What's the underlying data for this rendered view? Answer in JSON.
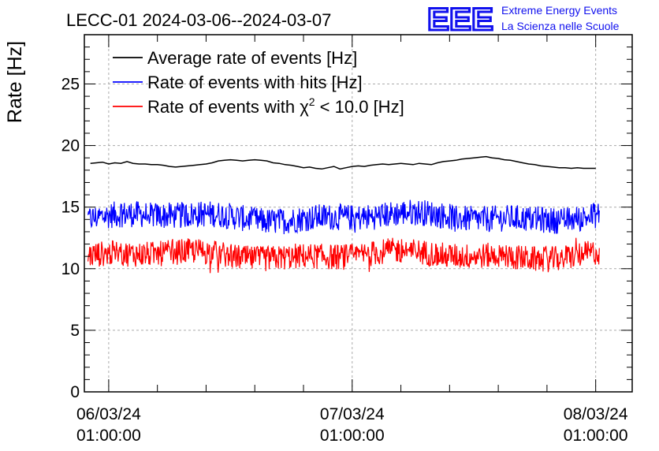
{
  "chart_data": {
    "type": "line",
    "title": "LECC-01 2024-03-06--2024-03-07",
    "ylabel": "Rate [Hz]",
    "xlabel": "",
    "ylim": [
      0,
      29
    ],
    "yticks": [
      0,
      5,
      10,
      15,
      20,
      25
    ],
    "x_range_hours": [
      -2,
      43
    ],
    "x_ticks": [
      {
        "date": "06/03/24",
        "time": "01:00:00",
        "hour": 0
      },
      {
        "date": "07/03/24",
        "time": "01:00:00",
        "hour": 20
      },
      {
        "date": "08/03/24",
        "time": "01:00:00",
        "hour": 40
      }
    ],
    "grid": true,
    "legend_position": "top-left",
    "series": [
      {
        "name": "Average rate of events [Hz]",
        "color": "#000000",
        "style": "smooth",
        "x_hours": [
          -1.5,
          -1,
          -0.5,
          0,
          0.5,
          1,
          1.5,
          2,
          2.5,
          3,
          3.5,
          4,
          4.5,
          5,
          5.5,
          6,
          6.5,
          7,
          7.5,
          8,
          8.5,
          9,
          9.5,
          10,
          10.5,
          11,
          11.5,
          12,
          12.5,
          13,
          13.5,
          14,
          14.5,
          15,
          15.5,
          16,
          16.5,
          17,
          17.5,
          18,
          18.5,
          19,
          19.5,
          20,
          20.5,
          21,
          21.5,
          22,
          22.5,
          23,
          23.5,
          24,
          24.5,
          25,
          25.5,
          26,
          26.5,
          27,
          27.5,
          28,
          28.5,
          29,
          29.5,
          30,
          30.5,
          31,
          31.5,
          32,
          32.5,
          33,
          33.5,
          34,
          34.5,
          35,
          35.5,
          36,
          36.5,
          37,
          37.5,
          38,
          38.5,
          39,
          39.5,
          40
        ],
        "values": [
          18.55,
          18.6,
          18.65,
          18.5,
          18.6,
          18.55,
          18.7,
          18.55,
          18.5,
          18.5,
          18.45,
          18.45,
          18.4,
          18.3,
          18.25,
          18.3,
          18.35,
          18.4,
          18.45,
          18.5,
          18.6,
          18.75,
          18.8,
          18.85,
          18.8,
          18.75,
          18.8,
          18.85,
          18.8,
          18.75,
          18.6,
          18.55,
          18.45,
          18.4,
          18.3,
          18.2,
          18.25,
          18.15,
          18.1,
          18.2,
          18.3,
          18.1,
          18.2,
          18.3,
          18.35,
          18.3,
          18.4,
          18.45,
          18.5,
          18.45,
          18.5,
          18.55,
          18.5,
          18.45,
          18.55,
          18.5,
          18.45,
          18.6,
          18.7,
          18.75,
          18.8,
          18.9,
          18.95,
          19.0,
          19.05,
          19.1,
          19.0,
          18.95,
          18.85,
          18.8,
          18.7,
          18.6,
          18.5,
          18.45,
          18.35,
          18.3,
          18.25,
          18.2,
          18.2,
          18.15,
          18.2,
          18.15,
          18.15,
          18.15
        ]
      },
      {
        "name": "Rate of events with hits [Hz]",
        "color": "#0000ff",
        "style": "noisy",
        "x_start_hours": -1.7,
        "x_end_hours": 40.3,
        "mean": 14.2,
        "min": 12.6,
        "max": 15.8
      },
      {
        "name": "Rate of events with χ² < 10.0 [Hz]",
        "color": "#ff0000",
        "style": "noisy",
        "x_start_hours": -1.7,
        "x_end_hours": 40.3,
        "mean": 11.1,
        "min": 9.4,
        "max": 12.5
      }
    ],
    "legend": [
      {
        "prefix": "Average rate of events [Hz]",
        "sup": "",
        "suffix": ""
      },
      {
        "prefix": "Rate of events with hits [Hz]",
        "sup": "",
        "suffix": ""
      },
      {
        "prefix": "Rate of events with χ",
        "sup": "2",
        "suffix": " < 10.0 [Hz]"
      }
    ]
  },
  "logo": {
    "mark": "EEE",
    "line1": "Extreme Energy Events",
    "line2": "La Scienza nelle Scuole",
    "color": "#1010ee"
  }
}
